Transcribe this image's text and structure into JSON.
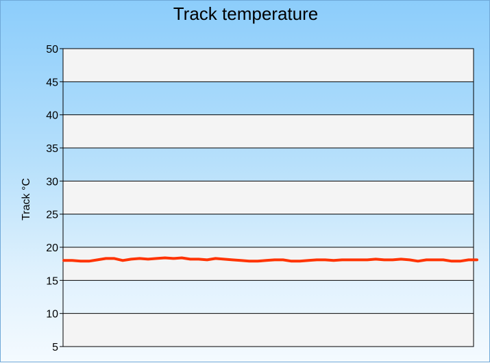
{
  "chart_data": {
    "type": "line",
    "title": "Track temperature",
    "xlabel": "",
    "ylabel": "Track °C",
    "ylim": [
      5,
      50
    ],
    "yticks": [
      50,
      45,
      40,
      35,
      30,
      25,
      20,
      15,
      10,
      5
    ],
    "grid": true,
    "legend": "none",
    "colors": {
      "line": "#ff3300",
      "band_light": "#f4f4f4",
      "axis": "#000000"
    },
    "series": [
      {
        "values": [
          18.0,
          18.0,
          17.9,
          17.9,
          18.1,
          18.3,
          18.3,
          18.0,
          18.2,
          18.3,
          18.2,
          18.3,
          18.4,
          18.3,
          18.4,
          18.2,
          18.2,
          18.1,
          18.3,
          18.2,
          18.1,
          18.0,
          17.9,
          17.9,
          18.0,
          18.1,
          18.1,
          17.9,
          17.9,
          18.0,
          18.1,
          18.1,
          18.0,
          18.1,
          18.1,
          18.1,
          18.1,
          18.2,
          18.1,
          18.1,
          18.2,
          18.1,
          17.9,
          18.1,
          18.1,
          18.1,
          17.9,
          17.9,
          18.1,
          18.1
        ]
      }
    ]
  }
}
